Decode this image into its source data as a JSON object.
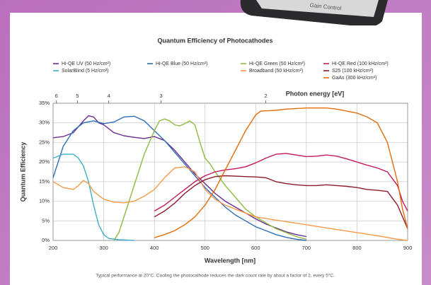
{
  "device_label": "Gain Control",
  "chart_data": {
    "type": "line",
    "title": "Quantum Efficiency of Photocathodes",
    "xlabel": "Wavelength [nm]",
    "ylabel": "Quantum Efficiency",
    "footnote": "Typical performance at 20°C. Cooling the photocathode reduces the dark count rate by about a factor of 2, every 5°C.",
    "xlim": [
      200,
      900
    ],
    "xticks": [
      200,
      300,
      400,
      500,
      600,
      700,
      800,
      900
    ],
    "ylim": [
      0,
      35
    ],
    "yticks": [
      {
        "value": 0,
        "label": "0%"
      },
      {
        "value": 5,
        "label": "5%"
      },
      {
        "value": 10,
        "label": "10%"
      },
      {
        "value": 15,
        "label": "15%"
      },
      {
        "value": 20,
        "label": "20%"
      },
      {
        "value": 25,
        "label": "25%"
      },
      {
        "value": 30,
        "label": "30%"
      },
      {
        "value": 35,
        "label": "35%"
      }
    ],
    "grid": true,
    "top_axis": {
      "label": "Photon energy [eV]",
      "ticks": [
        6,
        5,
        4,
        3,
        2
      ]
    },
    "series": [
      {
        "name": "Hi-QE UV (50 Hz/cm²)",
        "color": "#6b2c91",
        "x": [
          200,
          220,
          240,
          260,
          270,
          280,
          290,
          300,
          320,
          340,
          360,
          380,
          400,
          420,
          440,
          460,
          480,
          500,
          520,
          540,
          560,
          580,
          600,
          620,
          640,
          660,
          680,
          700
        ],
        "values": [
          26.2,
          26.5,
          27.5,
          30.5,
          31.8,
          31.5,
          30,
          29.5,
          27.5,
          26.7,
          26.3,
          26,
          26.5,
          25.5,
          23,
          20,
          17,
          14.5,
          12,
          10,
          8.5,
          7,
          5.5,
          4.2,
          3.2,
          2.2,
          1.5,
          1
        ]
      },
      {
        "name": "Hi-QE Blue (50 Hz/cm²)",
        "color": "#2f6eb5",
        "x": [
          200,
          210,
          220,
          240,
          260,
          280,
          300,
          320,
          340,
          360,
          380,
          400,
          420,
          440,
          460,
          480,
          500,
          520,
          540,
          560,
          580,
          600,
          620,
          640,
          660,
          680,
          700
        ],
        "values": [
          16,
          20,
          24,
          28,
          30,
          30.5,
          29.8,
          30.2,
          31.5,
          31.7,
          30.5,
          28,
          25.5,
          22.5,
          19.5,
          16.5,
          13.5,
          11,
          8.5,
          6.5,
          5,
          3.5,
          2.5,
          1.5,
          0.8,
          0.3,
          0
        ]
      },
      {
        "name": "Hi-QE Green (50 Hz/cm²)",
        "color": "#8dbb3f",
        "x": [
          320,
          330,
          340,
          360,
          380,
          400,
          410,
          420,
          430,
          440,
          450,
          460,
          470,
          480,
          490,
          500,
          510,
          520,
          540,
          560,
          580,
          600,
          620,
          640,
          660,
          680,
          700
        ],
        "values": [
          0,
          2,
          6,
          14,
          22,
          28,
          30.5,
          31,
          30.5,
          29.5,
          29.2,
          29.8,
          30.5,
          29.5,
          25,
          21,
          19.5,
          17.5,
          14,
          11,
          8,
          6,
          4.5,
          3,
          2,
          1,
          0.3
        ]
      },
      {
        "name": "Hi-QE Red (100 kHz/cm²)",
        "color": "#c2185b",
        "x": [
          400,
          420,
          440,
          460,
          480,
          500,
          520,
          540,
          560,
          580,
          600,
          620,
          640,
          660,
          680,
          700,
          720,
          740,
          760,
          780,
          800,
          820,
          840,
          860,
          880,
          890,
          900
        ],
        "values": [
          7.5,
          9,
          11,
          13,
          15,
          16.5,
          17.5,
          18,
          18.3,
          18.8,
          19.8,
          21,
          22,
          22.2,
          21.8,
          21.4,
          21.5,
          21.8,
          21.5,
          20.8,
          20,
          19.2,
          18.5,
          17.5,
          14,
          10,
          7.5
        ]
      },
      {
        "name": "SolarBlind (5 Hz/cm²)",
        "color": "#3ab0c8",
        "x": [
          200,
          220,
          240,
          250,
          260,
          270,
          280,
          290,
          300,
          310,
          330,
          360
        ],
        "values": [
          21,
          22,
          22,
          21,
          19,
          15,
          9,
          4,
          1.5,
          0.5,
          0.2,
          0
        ]
      },
      {
        "name": "Broadband (50 kHz/cm²)",
        "color": "#f39a4a",
        "x": [
          200,
          220,
          240,
          250,
          260,
          270,
          280,
          300,
          320,
          340,
          360,
          380,
          400,
          420,
          440,
          460,
          480,
          500,
          520,
          540,
          560,
          580,
          600,
          650,
          700,
          750,
          800,
          850,
          880,
          900
        ],
        "values": [
          15,
          13.5,
          13,
          14,
          15.3,
          14.5,
          12.5,
          10.5,
          9.8,
          9.6,
          10,
          11.3,
          13,
          16,
          18.5,
          18.8,
          17.5,
          13,
          10.5,
          9,
          8,
          7,
          6,
          5,
          4,
          3,
          2,
          1,
          0.3,
          0
        ]
      },
      {
        "name": "S25 (100 kHz/cm²)",
        "color": "#8b1a2b",
        "x": [
          400,
          420,
          440,
          460,
          480,
          500,
          520,
          540,
          560,
          580,
          600,
          620,
          640,
          660,
          680,
          700,
          720,
          740,
          760,
          780,
          800,
          820,
          840,
          860,
          880,
          900
        ],
        "values": [
          6,
          7.5,
          9.5,
          12,
          14,
          15.5,
          16.3,
          16.5,
          16.4,
          16.3,
          16.2,
          16,
          15,
          14.5,
          14.2,
          14,
          14,
          14.2,
          14,
          13.8,
          13.5,
          13,
          12.8,
          12.5,
          9,
          3
        ]
      },
      {
        "name": "GaAs (300 kHz/cm²)",
        "color": "#e36c0a",
        "x": [
          400,
          420,
          440,
          460,
          480,
          500,
          520,
          540,
          560,
          580,
          600,
          610,
          640,
          660,
          700,
          740,
          760,
          780,
          800,
          820,
          840,
          860,
          880,
          890,
          900
        ],
        "values": [
          0.7,
          1.5,
          2.5,
          4,
          6,
          9,
          13,
          18,
          23,
          28,
          32,
          33,
          33.2,
          33.5,
          33.8,
          33.8,
          33.5,
          33,
          32.5,
          31.5,
          30,
          25,
          15,
          8,
          3
        ]
      }
    ]
  }
}
